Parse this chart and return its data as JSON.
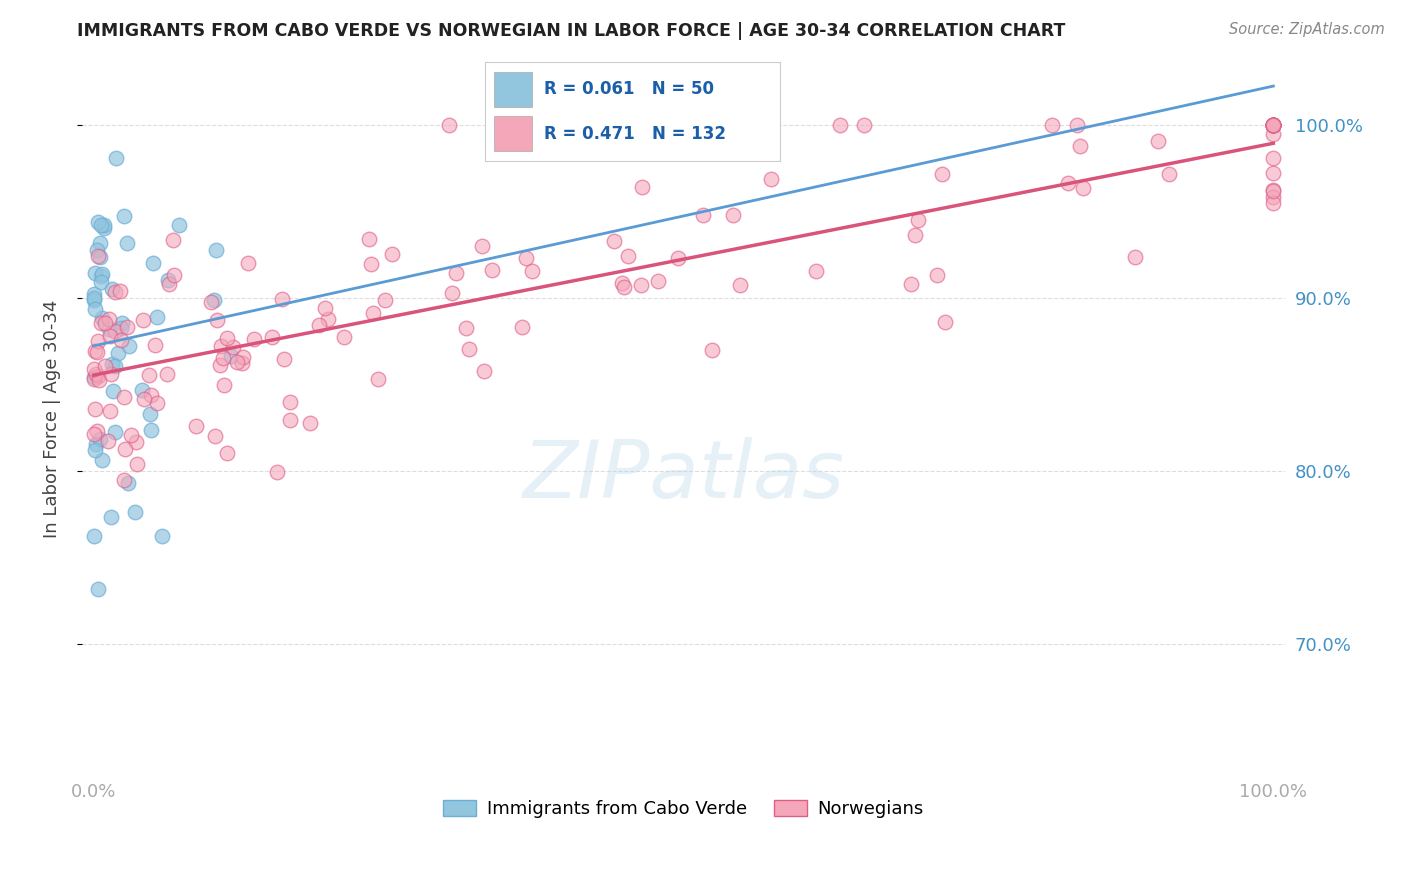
{
  "title": "IMMIGRANTS FROM CABO VERDE VS NORWEGIAN IN LABOR FORCE | AGE 30-34 CORRELATION CHART",
  "source": "Source: ZipAtlas.com",
  "ylabel": "In Labor Force | Age 30-34",
  "xlim": [
    -0.01,
    1.01
  ],
  "ylim": [
    0.625,
    1.035
  ],
  "yticks": [
    0.7,
    0.8,
    0.9,
    1.0
  ],
  "ytick_labels": [
    "70.0%",
    "80.0%",
    "90.0%",
    "100.0%"
  ],
  "xtick_vals": [
    0.0,
    0.1,
    0.2,
    0.3,
    0.4,
    0.5,
    0.6,
    0.7,
    0.8,
    0.9,
    1.0
  ],
  "xtick_labels": [
    "0.0%",
    "",
    "",
    "",
    "",
    "",
    "",
    "",
    "",
    "",
    "100.0%"
  ],
  "blue_color": "#92c5de",
  "blue_edge_color": "#6baed6",
  "pink_color": "#f4a7b9",
  "pink_edge_color": "#e05c8a",
  "blue_line_color": "#5b9bd5",
  "pink_line_color": "#d9547a",
  "legend_R_blue": "R = 0.061",
  "legend_N_blue": "N = 50",
  "legend_R_pink": "R = 0.471",
  "legend_N_pink": "N = 132",
  "label_blue": "Immigrants from Cabo Verde",
  "label_pink": "Norwegians",
  "background_color": "#ffffff",
  "grid_color": "#dddddd",
  "tick_color_right": "#4292c6",
  "watermark": "ZIPatlas"
}
